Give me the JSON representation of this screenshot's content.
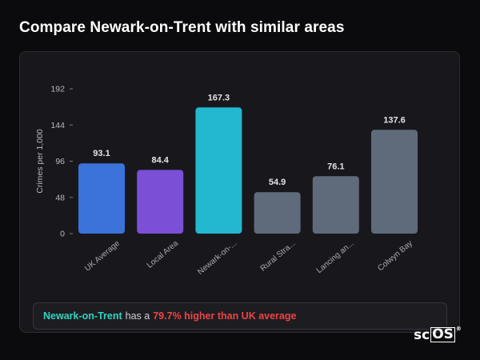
{
  "page": {
    "title": "Compare Newark-on-Trent with similar areas"
  },
  "chart_data": {
    "type": "bar",
    "ylabel": "Crimes per 1,000",
    "ylim": [
      0,
      192
    ],
    "yticks": [
      0,
      48,
      96,
      144,
      192
    ],
    "grid": false,
    "categories": [
      "UK Average",
      "Local Area",
      "Newark-on-...",
      "Rural Stra...",
      "Lancing an...",
      "Colwyn Bay"
    ],
    "values": [
      93.1,
      84.4,
      167.3,
      54.9,
      76.1,
      137.6
    ],
    "value_labels": [
      "93.1",
      "84.4",
      "167.3",
      "54.9",
      "76.1",
      "137.6"
    ],
    "colors": [
      "#3b73db",
      "#7b4fd6",
      "#22b8cf",
      "#5f6b7a",
      "#5f6b7a",
      "#5f6b7a"
    ]
  },
  "summary": {
    "area_name": "Newark-on-Trent",
    "middle_text": "has a",
    "difference_text": "79.7% higher than UK average"
  },
  "brand": {
    "prefix": "sc",
    "boxed": "OS",
    "mark": "®"
  },
  "colors": {
    "area_accent": "#2dd4bf",
    "difference_accent": "#ef4444"
  }
}
